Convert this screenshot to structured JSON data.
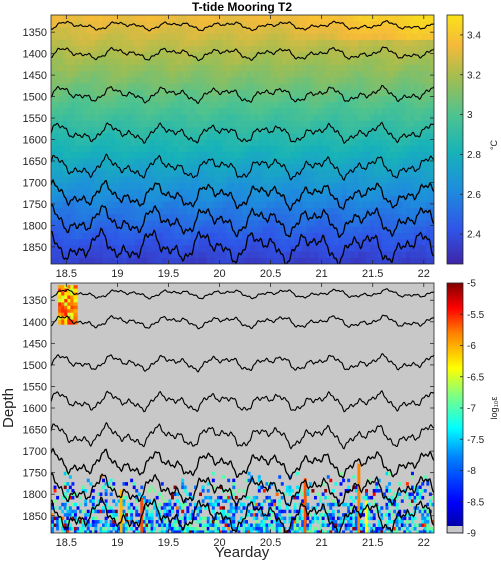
{
  "chart_data": [
    {
      "type": "heatmap",
      "title": "T-tide Mooring T2",
      "xlabel": "",
      "ylabel": "",
      "xlim": [
        18.35,
        22.1
      ],
      "ylim": [
        1310,
        1890
      ],
      "y_reversed": true,
      "xticks": [
        "18.5",
        "19",
        "19.5",
        "20",
        "20.5",
        "21",
        "21.5",
        "22"
      ],
      "yticks": [
        "1350",
        "1400",
        "1450",
        "1500",
        "1550",
        "1600",
        "1650",
        "1700",
        "1750",
        "1800",
        "1850"
      ],
      "colorbar": {
        "label": "°C",
        "range": [
          2.25,
          3.5
        ],
        "ticks": [
          "2.4",
          "2.6",
          "2.8",
          "3",
          "3.2",
          "3.4"
        ],
        "colors": [
          "#3e26a8",
          "#2f55e8",
          "#1e8ddd",
          "#17b3b8",
          "#4fc38f",
          "#a3bd50",
          "#f5ba3a",
          "#f9e219"
        ]
      },
      "isotherm_mean_depths": [
        1335,
        1400,
        1495,
        1585,
        1665,
        1730,
        1790,
        1850
      ],
      "isotherm_color": "#000000"
    },
    {
      "type": "heatmap",
      "title": "",
      "xlabel": "Yearday",
      "ylabel": "Depth",
      "xlim": [
        18.35,
        22.1
      ],
      "ylim": [
        1310,
        1890
      ],
      "y_reversed": true,
      "xticks": [
        "18.5",
        "19",
        "19.5",
        "20",
        "20.5",
        "21",
        "21.5",
        "22"
      ],
      "yticks": [
        "1350",
        "1400",
        "1450",
        "1500",
        "1550",
        "1600",
        "1650",
        "1700",
        "1750",
        "1800",
        "1850"
      ],
      "background_color": "#c8c8c8",
      "colorbar": {
        "label": "log₁₀ε",
        "range": [
          -9,
          -5
        ],
        "ticks": [
          "-5",
          "-5.5",
          "-6",
          "-6.5",
          "-7",
          "-7.5",
          "-8",
          "-8.5",
          "-9"
        ],
        "colors": [
          "#00008f",
          "#0000ff",
          "#0080ff",
          "#00ffff",
          "#80ff80",
          "#ffff00",
          "#ff8000",
          "#ff0000",
          "#800000"
        ]
      },
      "isotherm_mean_depths": [
        1335,
        1400,
        1495,
        1585,
        1665,
        1730,
        1790,
        1850
      ],
      "isotherm_color": "#000000"
    }
  ]
}
